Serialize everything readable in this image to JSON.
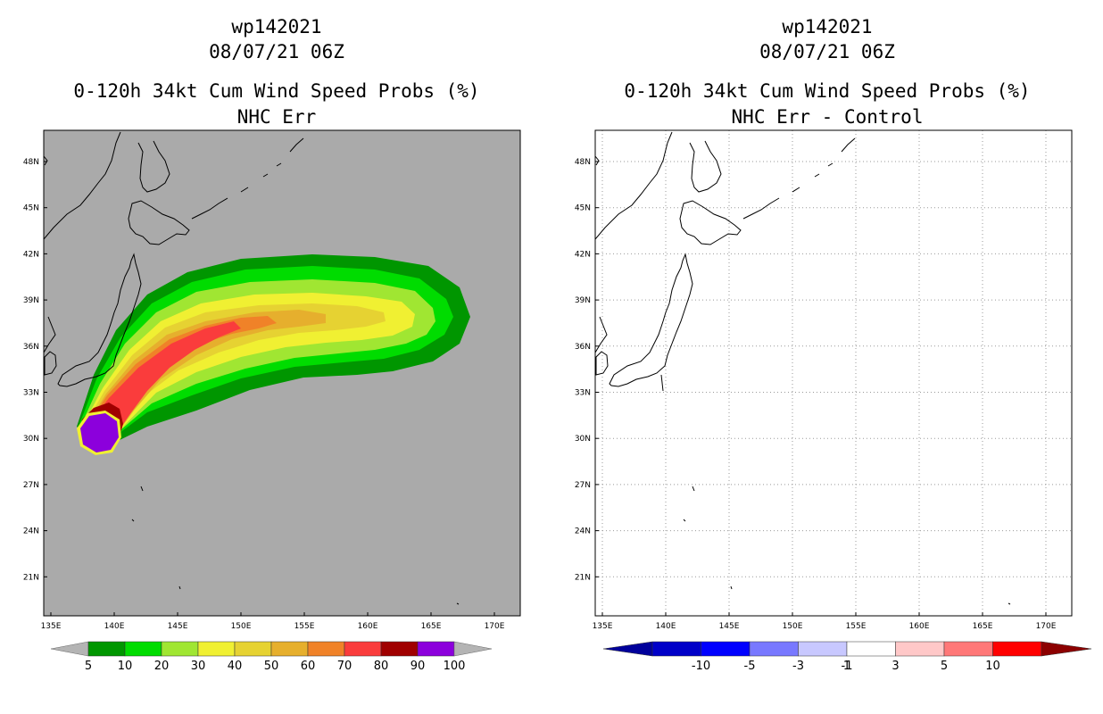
{
  "left": {
    "title_id": "wp142021",
    "title_time": "08/07/21 06Z",
    "title_product": "0-120h 34kt Cum Wind Speed Probs (%)",
    "title_sub": "NHC Err",
    "lat_labels": [
      "48N",
      "45N",
      "42N",
      "39N",
      "36N",
      "33N",
      "30N",
      "27N",
      "24N",
      "21N"
    ],
    "lon_labels": [
      "135E",
      "140E",
      "145E",
      "150E",
      "155E",
      "160E",
      "165E",
      "170E"
    ],
    "colorbar": {
      "labels": [
        "5",
        "10",
        "20",
        "30",
        "40",
        "50",
        "60",
        "70",
        "80",
        "90",
        "100"
      ],
      "colors": [
        "#009600",
        "#00dc00",
        "#a0e632",
        "#f0f032",
        "#e6d232",
        "#e6af2d",
        "#f08228",
        "#fa3c3c",
        "#a00000",
        "#8c00dc"
      ],
      "arrow_color": "#b4b4b4"
    },
    "background": "#aaaaaa"
  },
  "right": {
    "title_id": "wp142021",
    "title_time": "08/07/21 06Z",
    "title_product": "0-120h 34kt Cum Wind Speed Probs (%)",
    "title_sub": "NHC Err - Control",
    "lat_labels": [
      "48N",
      "45N",
      "42N",
      "39N",
      "36N",
      "33N",
      "30N",
      "27N",
      "24N",
      "21N"
    ],
    "lon_labels": [
      "135E",
      "140E",
      "145E",
      "150E",
      "155E",
      "160E",
      "165E",
      "170E"
    ],
    "colorbar": {
      "labels": [
        "-10",
        "-5",
        "-3",
        "-1",
        "1",
        "3",
        "5",
        "10"
      ],
      "colors": [
        "#0000c8",
        "#0000ff",
        "#7878ff",
        "#c8c8ff",
        "#ffffff",
        "#ffc8c8",
        "#ff7878",
        "#ff0000"
      ],
      "arrow_left": "#00009b",
      "arrow_right": "#8c0000"
    },
    "background": "#ffffff"
  }
}
